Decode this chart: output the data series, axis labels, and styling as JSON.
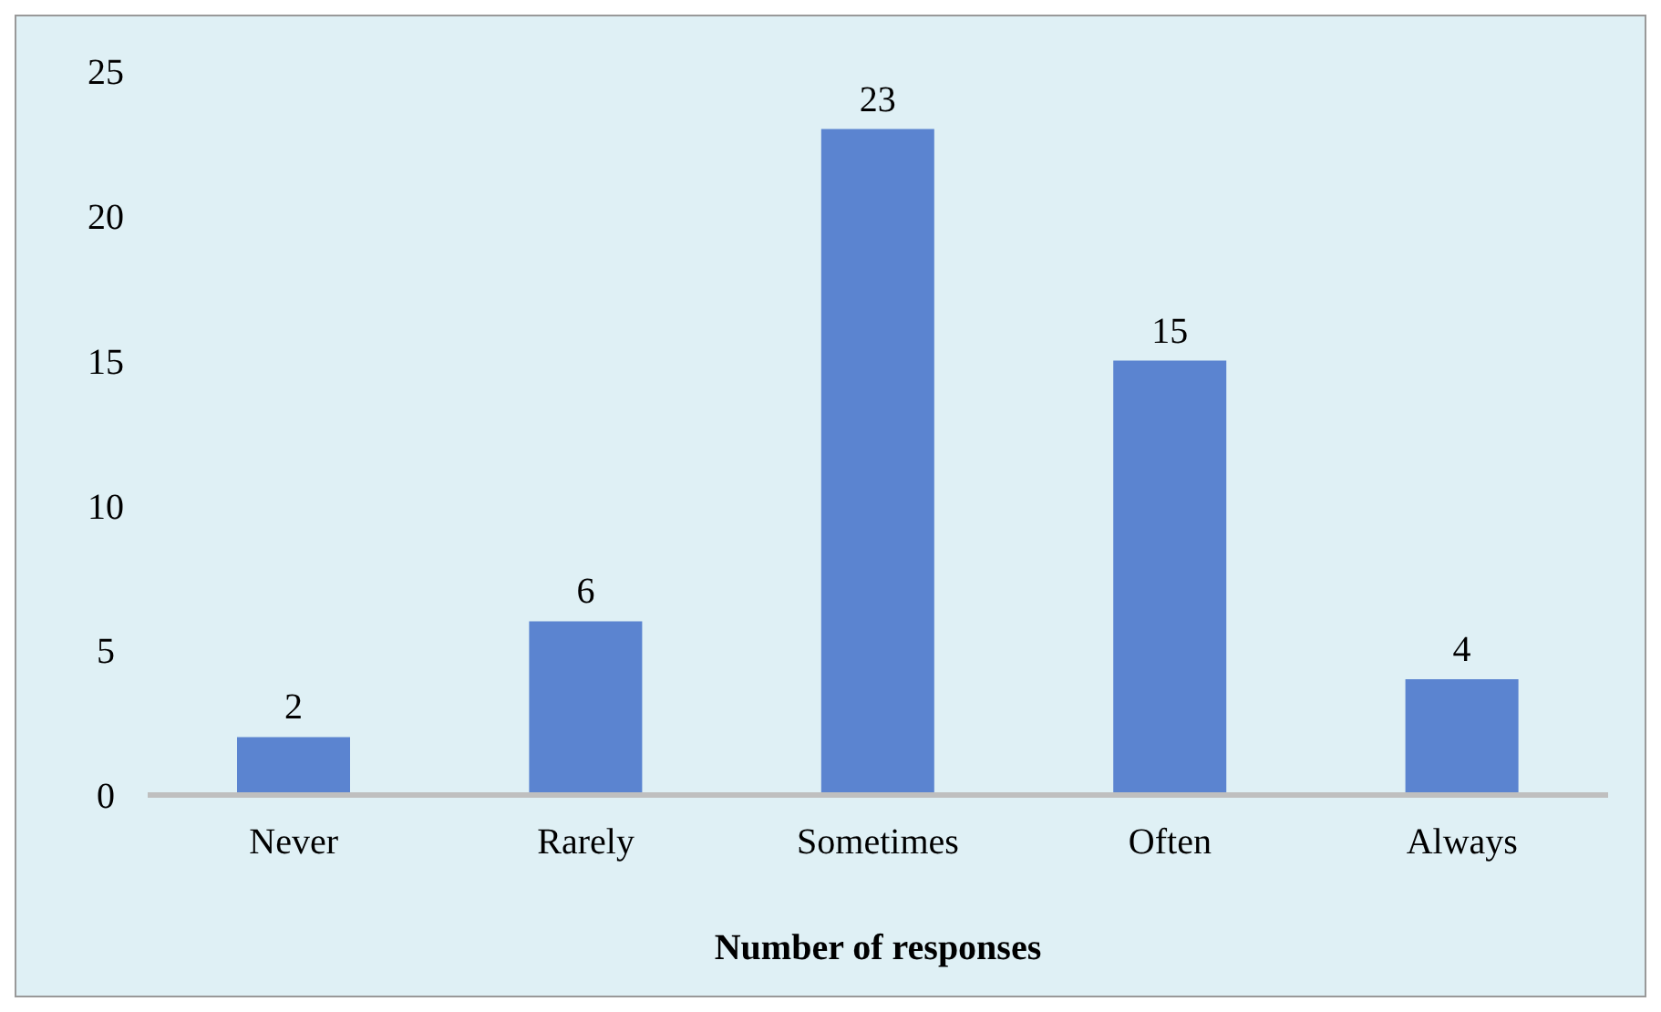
{
  "chart_data": {
    "type": "bar",
    "xlabel": "Number of responses",
    "categories": [
      "Never",
      "Rarely",
      "Sometimes",
      "Often",
      "Always"
    ],
    "values": [
      2,
      6,
      23,
      15,
      4
    ],
    "color": "#5b84d0",
    "ylim": [
      0,
      25
    ],
    "yticks": [
      0,
      5,
      10,
      15,
      20,
      25
    ],
    "grid": false,
    "data_labels": true,
    "legend": false
  }
}
